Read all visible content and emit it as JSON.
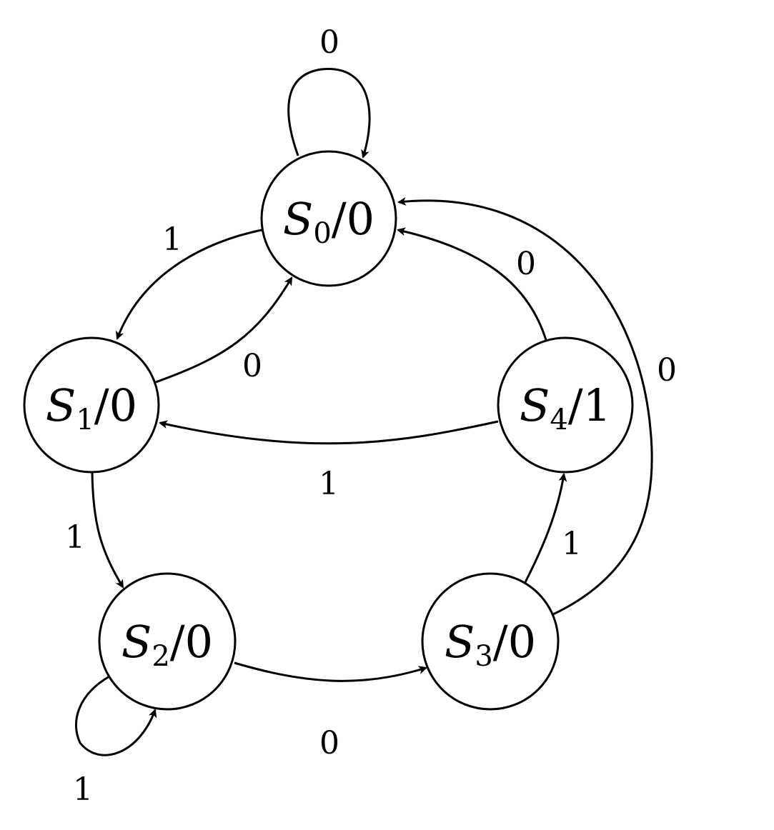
{
  "colors": {
    "stroke": "#000000",
    "background": "#ffffff"
  },
  "states": [
    {
      "id": "s0",
      "name": "S",
      "sub": "0",
      "output": "/0"
    },
    {
      "id": "s1",
      "name": "S",
      "sub": "1",
      "output": "/0"
    },
    {
      "id": "s2",
      "name": "S",
      "sub": "2",
      "output": "/0"
    },
    {
      "id": "s3",
      "name": "S",
      "sub": "3",
      "output": "/0"
    },
    {
      "id": "s4",
      "name": "S",
      "sub": "4",
      "output": "/1"
    }
  ],
  "transitions": [
    {
      "id": "s0-s0",
      "from": "S0",
      "to": "S0",
      "label": "0"
    },
    {
      "id": "s0-s1",
      "from": "S0",
      "to": "S1",
      "label": "1"
    },
    {
      "id": "s1-s0",
      "from": "S1",
      "to": "S0",
      "label": "0"
    },
    {
      "id": "s4-s0",
      "from": "S4",
      "to": "S0",
      "label": "0"
    },
    {
      "id": "s3-s0",
      "from": "S3",
      "to": "S0",
      "label": "0"
    },
    {
      "id": "s4-s1",
      "from": "S4",
      "to": "S1",
      "label": "1"
    },
    {
      "id": "s1-s2",
      "from": "S1",
      "to": "S2",
      "label": "1"
    },
    {
      "id": "s3-s4",
      "from": "S3",
      "to": "S4",
      "label": "1"
    },
    {
      "id": "s2-s3",
      "from": "S2",
      "to": "S3",
      "label": "0"
    },
    {
      "id": "s2-s2",
      "from": "S2",
      "to": "S2",
      "label": "1"
    }
  ]
}
